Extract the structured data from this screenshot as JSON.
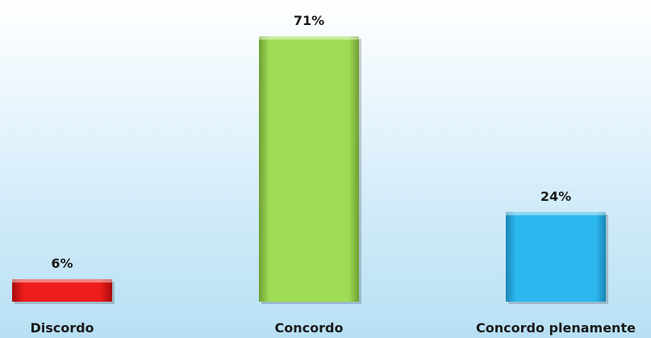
{
  "chart_data": {
    "type": "bar",
    "categories": [
      "Discordo",
      "Concordo",
      "Concordo plenamente"
    ],
    "values": [
      6,
      71,
      24
    ],
    "value_labels": [
      "6%",
      "71%",
      "24%"
    ],
    "colors": [
      "#ee1c1c",
      "#99d64f",
      "#29b6ee"
    ],
    "ylim": [
      0,
      71
    ],
    "grid": false,
    "legend": "none"
  }
}
